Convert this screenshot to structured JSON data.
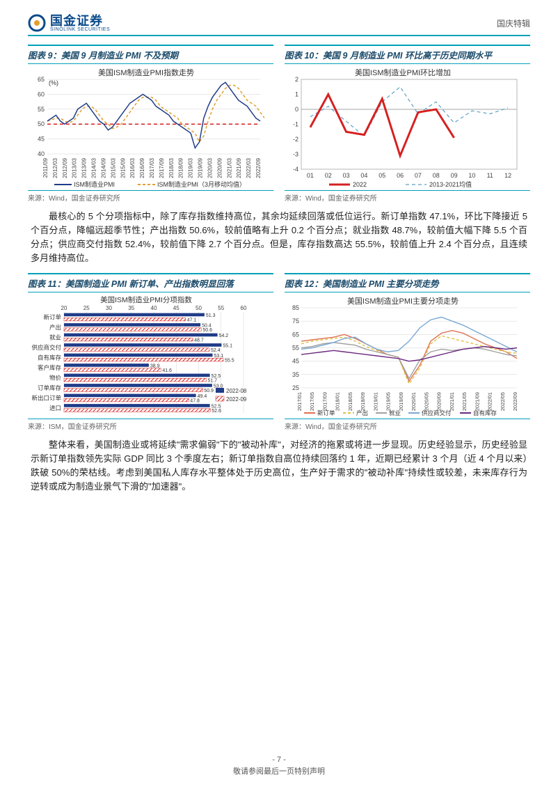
{
  "header": {
    "logo_cn": "国金证券",
    "logo_en": "SINOLINK SECURITIES",
    "right": "国庆特辑"
  },
  "chart9": {
    "title": "图表 9：美国 9 月制造业 PMI 不及预期",
    "subtitle": "美国ISM制造业PMI指数走势",
    "y_unit": "(%)",
    "ylim": [
      40,
      65
    ],
    "yticks": [
      40,
      45,
      50,
      55,
      60,
      65
    ],
    "xticks": [
      "2011/09",
      "2012/03",
      "2012/09",
      "2013/03",
      "2013/09",
      "2014/03",
      "2014/09",
      "2015/03",
      "2015/09",
      "2016/03",
      "2016/09",
      "2017/03",
      "2017/09",
      "2018/03",
      "2018/09",
      "2019/03",
      "2019/09",
      "2020/03",
      "2020/09",
      "2021/03",
      "2021/09",
      "2022/03",
      "2022/09"
    ],
    "ref_line": 50,
    "series_pmi": {
      "label": "ISM制造业PMI",
      "color": "#1f3c88",
      "values": [
        51,
        52,
        53,
        51,
        50,
        51,
        52,
        55,
        56,
        57,
        55,
        53,
        51,
        50,
        48,
        49,
        51,
        53,
        55,
        57,
        58,
        59,
        60,
        59,
        58,
        56,
        55,
        54,
        53,
        51,
        50,
        49,
        48,
        47,
        42,
        44,
        52,
        56,
        59,
        61,
        63,
        64,
        62,
        60,
        58,
        57,
        56,
        54,
        52,
        51
      ]
    },
    "series_ma": {
      "label": "ISM制造业PMI（3月移动均值）",
      "color": "#e0a030",
      "dash": "4,3",
      "values": [
        51,
        51.5,
        52,
        52,
        51,
        50.5,
        51,
        53,
        55,
        56,
        56,
        55,
        53,
        51,
        50,
        48.5,
        49,
        50,
        52,
        54,
        56,
        58,
        59,
        59,
        59,
        58,
        56,
        55,
        54,
        53,
        52,
        50,
        49,
        48,
        47,
        44,
        46,
        51,
        55,
        58,
        60,
        62,
        63,
        63,
        62,
        60,
        58,
        57,
        56,
        54,
        52
      ]
    },
    "source": "来源：Wind，国金证券研究所"
  },
  "chart10": {
    "title": "图表 10：美国 9 月制造业 PMI 环比高于历史同期水平",
    "subtitle": "美国ISM制造业PMI环比增加",
    "ylim": [
      -4,
      2
    ],
    "yticks": [
      -4,
      -3,
      -2,
      -1,
      0,
      1,
      2
    ],
    "xticks": [
      "01",
      "02",
      "03",
      "04",
      "05",
      "06",
      "07",
      "08",
      "09",
      "10",
      "11",
      "12"
    ],
    "series_2022": {
      "label": "2022",
      "color": "#d62020",
      "width": 3,
      "values": [
        -1.2,
        1.0,
        -1.5,
        -1.7,
        0.7,
        -3.1,
        -0.2,
        0.0,
        -1.9
      ]
    },
    "series_hist": {
      "label": "2013-2021均值",
      "color": "#5aa0c8",
      "dash": "5,4",
      "values": [
        -0.5,
        0.2,
        -0.8,
        -1.8,
        0.5,
        1.5,
        -0.3,
        0.5,
        -0.9,
        -0.1,
        -0.3,
        0.1
      ]
    },
    "source": "来源：Wind，国金证券研究所"
  },
  "paragraph1": "最核心的 5 个分项指标中，除了库存指数维持高位，其余均延续回落或低位运行。新订单指数 47.1%，环比下降接近 5 个百分点，降幅远超季节性；产出指数 50.6%，较前值略有上升 0.2 个百分点；就业指数 48.7%，较前值大幅下降 5.5 个百分点；供应商交付指数 52.4%，较前值下降 2.7 个百分点。但是，库存指数高达 55.5%，较前值上升 2.4 个百分点，且连续多月维持高位。",
  "chart11": {
    "title": "图表 11：美国制造业 PMI 新订单、产出指数明显回落",
    "subtitle": "美国ISM制造业PMI分项指数",
    "xlim": [
      20,
      60
    ],
    "xticks": [
      20,
      25,
      30,
      35,
      40,
      45,
      50,
      55,
      60
    ],
    "categories": [
      "新订单",
      "产出",
      "就业",
      "供应商交付",
      "自有库存",
      "客户库存",
      "物价",
      "订单库存",
      "新出口订单",
      "进口"
    ],
    "series_08": {
      "label": "2022-08",
      "color": "#1f3c88",
      "values": [
        51.3,
        50.4,
        54.2,
        55.1,
        53.1,
        38.9,
        52.5,
        53.0,
        49.4,
        52.5
      ]
    },
    "series_09": {
      "label": "2022-09",
      "color": "#d62020",
      "pattern": true,
      "values": [
        47.1,
        50.6,
        48.7,
        52.4,
        55.5,
        41.6,
        51.7,
        50.9,
        47.8,
        52.6
      ]
    },
    "source": "来源：ISM，国金证券研究所"
  },
  "chart12": {
    "title": "图表 12：美国制造业 PMI 主要分项走势",
    "subtitle": "美国ISM制造业PMI主要分项走势",
    "ylim": [
      25,
      85
    ],
    "yticks": [
      25,
      35,
      45,
      55,
      65,
      75,
      85
    ],
    "xticks": [
      "2017/01",
      "2017/05",
      "2017/09",
      "2018/01",
      "2018/05",
      "2018/09",
      "2019/01",
      "2019/05",
      "2019/09",
      "2020/01",
      "2020/05",
      "2020/09",
      "2021/01",
      "2021/05",
      "2021/09",
      "2022/01",
      "2022/05",
      "2022/09"
    ],
    "series": [
      {
        "label": "新订单",
        "color": "#e07050",
        "values": [
          60,
          61,
          62,
          63,
          65,
          62,
          58,
          54,
          50,
          48,
          30,
          42,
          60,
          66,
          68,
          66,
          62,
          58,
          55,
          52,
          47
        ]
      },
      {
        "label": "产出",
        "color": "#e0c040",
        "dash": "4,3",
        "values": [
          58,
          60,
          61,
          62,
          63,
          60,
          56,
          53,
          50,
          48,
          28,
          40,
          58,
          64,
          62,
          60,
          58,
          56,
          54,
          52,
          51
        ]
      },
      {
        "label": "就业",
        "color": "#a0a0a0",
        "values": [
          55,
          56,
          58,
          59,
          58,
          57,
          54,
          52,
          50,
          48,
          32,
          46,
          52,
          54,
          53,
          54,
          55,
          54,
          52,
          50,
          49
        ]
      },
      {
        "label": "供应商交付",
        "color": "#7aa8d4",
        "values": [
          54,
          55,
          57,
          59,
          62,
          63,
          58,
          54,
          52,
          53,
          60,
          70,
          76,
          78,
          75,
          72,
          68,
          64,
          60,
          56,
          52
        ]
      },
      {
        "label": "自有库存",
        "color": "#6a287e",
        "values": [
          50,
          51,
          52,
          53,
          52,
          51,
          50,
          49,
          48,
          47,
          45,
          46,
          48,
          50,
          52,
          54,
          55,
          56,
          55,
          54,
          55
        ]
      }
    ],
    "source": "来源：Wind，国金证券研究所"
  },
  "paragraph2": "整体来看，美国制造业或将延续\"需求偏弱\"下的\"被动补库\"，对经济的拖累或将进一步显现。历史经验显示，历史经验显示新订单指数领先实际 GDP 同比 3 个季度左右；新订单指数自高位持续回落约 1 年，近期已经累计 3 个月（近 4 个月以来）跌破 50%的荣枯线。考虑到美国私人库存水平整体处于历史高位，生产好于需求的\"被动补库\"持续性或较差，未来库存行为逆转或成为制造业景气下滑的\"加速器\"。",
  "footer": {
    "page": "- 7 -",
    "notice": "敬请参阅最后一页特别声明"
  },
  "colors": {
    "accent": "#00a0b8",
    "brand": "#0a4a8a",
    "grid": "#d0d0d0",
    "axis": "#555555"
  }
}
